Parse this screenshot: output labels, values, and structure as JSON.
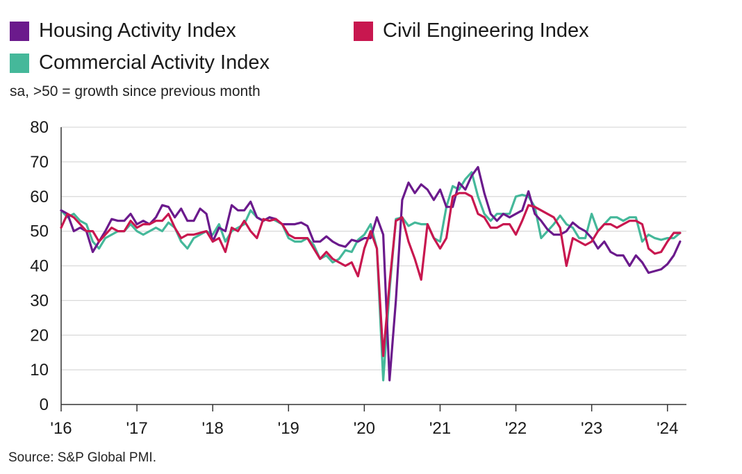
{
  "legend": {
    "housing": "Housing Activity Index",
    "civil": "Civil Engineering Index",
    "commercial": "Commercial Activity Index"
  },
  "subtitle": "sa, >50 = growth since previous month",
  "source": "Source: S&P Global PMI.",
  "colors": {
    "housing": "#6b1a8c",
    "civil": "#c8174f",
    "commercial": "#45b89a",
    "grid": "#d9d9d9",
    "axis": "#333333"
  },
  "chart_data": {
    "type": "line",
    "x_start": "2016-01",
    "x_frequency": "monthly",
    "ylim": [
      0,
      80
    ],
    "yticks": [
      "0",
      "10",
      "20",
      "30",
      "40",
      "50",
      "60",
      "70",
      "80"
    ],
    "xticks": [
      "'16",
      "'17",
      "'18",
      "'19",
      "'20",
      "'21",
      "'22",
      "'23",
      "'24"
    ],
    "grid": true,
    "legend_position": "top",
    "series": [
      {
        "name": "Housing Activity Index",
        "key": "housing",
        "values": [
          56,
          55,
          50,
          51,
          50,
          44,
          47,
          50,
          53.5,
          53,
          53,
          55,
          52,
          53,
          52,
          54,
          57.5,
          57,
          54,
          56.5,
          53,
          53,
          56.5,
          55,
          47,
          51,
          50,
          57.5,
          56,
          56,
          58.5,
          54,
          53,
          54,
          53.5,
          52,
          52,
          52,
          52.5,
          51.5,
          47,
          47,
          48.5,
          47,
          46,
          45.5,
          47.5,
          47,
          48,
          48,
          54,
          49,
          7,
          30,
          59,
          64,
          61,
          63.5,
          62,
          59,
          62,
          57,
          57,
          64,
          62,
          66,
          68.5,
          61,
          55,
          53,
          55,
          54,
          55,
          56,
          61.5,
          55,
          53,
          50.5,
          49,
          49,
          50,
          52.5,
          51,
          50,
          48,
          45,
          47,
          44,
          43,
          43,
          40,
          43,
          41,
          38,
          38.5,
          39,
          40.5,
          43,
          47
        ]
      },
      {
        "name": "Civil Engineering Index",
        "key": "civil",
        "values": [
          51,
          55,
          54,
          52,
          50,
          50,
          47,
          49,
          51,
          50,
          50,
          53,
          51,
          52,
          52,
          53,
          53,
          55,
          51,
          48,
          49,
          49,
          49.5,
          50,
          47,
          48,
          44,
          51,
          50,
          53,
          50,
          48,
          53.5,
          53,
          53.5,
          52,
          49,
          48,
          48,
          48,
          45,
          42,
          44,
          42,
          41,
          40,
          41,
          37,
          45,
          50,
          45,
          14,
          35,
          53,
          54,
          47,
          42,
          36,
          52,
          48,
          45,
          48,
          60,
          61,
          61,
          60,
          55,
          54,
          51,
          51,
          52,
          52,
          49,
          53,
          57.5,
          57,
          56,
          55,
          54,
          51,
          40,
          48,
          47,
          46,
          47,
          50,
          52,
          52,
          51,
          52,
          53,
          53,
          52,
          45,
          43.5,
          44,
          47,
          49.5,
          49.5
        ]
      },
      {
        "name": "Commercial Activity Index",
        "key": "commercial",
        "values": [
          56,
          54,
          55,
          53,
          52,
          47,
          45,
          48,
          49,
          50,
          50,
          52,
          50,
          49,
          50,
          51,
          50,
          52.5,
          51,
          47,
          45,
          48,
          49,
          50,
          49,
          52,
          47,
          50,
          51,
          52,
          56,
          54,
          53,
          54,
          53,
          52,
          48,
          47,
          47,
          48,
          46,
          42,
          43,
          41,
          42,
          44.5,
          44,
          47.5,
          49,
          52,
          45,
          7,
          33,
          53.5,
          54,
          51.5,
          52.5,
          52,
          52,
          48,
          47,
          57,
          63,
          62,
          65,
          67,
          60,
          55,
          53,
          55,
          55,
          55,
          60,
          60.5,
          60,
          57,
          48,
          50,
          52,
          54.5,
          52,
          51,
          48,
          48,
          55,
          50,
          52,
          54,
          54,
          53,
          54,
          54,
          47,
          49,
          48,
          47.5,
          48,
          48,
          49.5
        ]
      }
    ]
  }
}
